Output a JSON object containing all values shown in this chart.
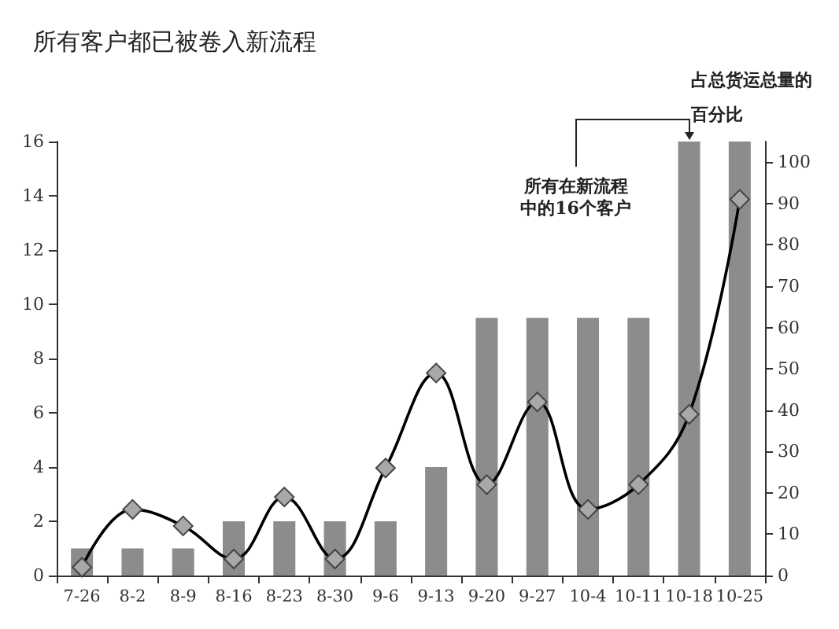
{
  "chart_data": {
    "type": "bar",
    "title": "所有客户都已被卷入新流程",
    "y2label": "占总货运总量的百分比",
    "categories": [
      "7-26",
      "8-2",
      "8-9",
      "8-16",
      "8-23",
      "8-30",
      "9-6",
      "9-13",
      "9-20",
      "9-27",
      "10-4",
      "10-11",
      "10-18",
      "10-25"
    ],
    "series": [
      {
        "color": "#8c8c8c",
        "values": [
          1,
          1,
          1,
          2,
          2,
          2,
          2,
          4,
          9.5,
          9.5,
          9.5,
          9.5,
          16,
          16
        ]
      },
      {
        "type": "line",
        "axis": "y2",
        "color": "#000000",
        "marker": "diamond",
        "values": [
          2,
          16,
          12,
          4,
          19,
          4,
          26,
          49,
          22,
          42,
          16,
          22,
          39,
          91
        ]
      }
    ],
    "ylim": [
      0,
      16
    ],
    "yticks": [
      0,
      2,
      4,
      6,
      8,
      10,
      12,
      14,
      16
    ],
    "y2lim": [
      0,
      105
    ],
    "y2ticks": [
      0,
      10,
      20,
      30,
      40,
      50,
      60,
      70,
      80,
      90,
      100
    ],
    "annotations": [
      {
        "text": "所有在新流程中的16个客户",
        "x": "10-18",
        "y": 16
      }
    ],
    "grid": false
  }
}
